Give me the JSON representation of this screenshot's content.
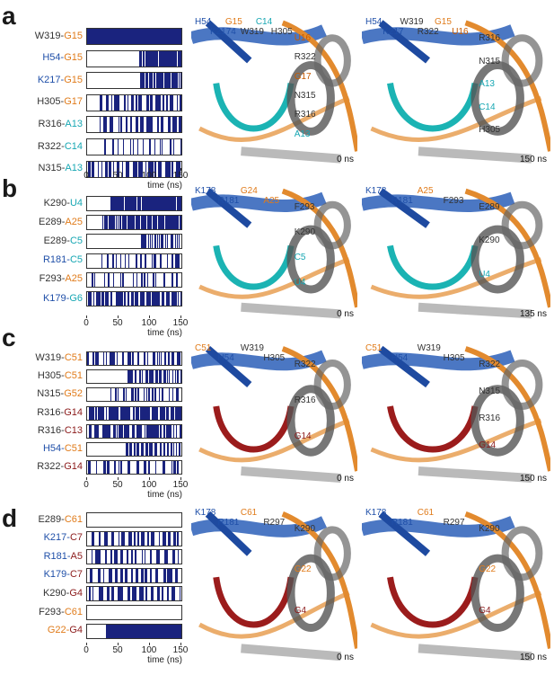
{
  "colors": {
    "blue": "#1f4fa8",
    "orange": "#e07b1a",
    "teal": "#17a7b3",
    "dark": "#333333",
    "red": "#8b1a1a",
    "bar": "#1a237e"
  },
  "panels": [
    {
      "letter": "a",
      "rows": [
        {
          "a": "W319",
          "ac": "dark",
          "b": "G15",
          "bc": "orange"
        },
        {
          "a": "H54",
          "ac": "blue",
          "b": "G15",
          "bc": "orange"
        },
        {
          "a": "K217",
          "ac": "blue",
          "b": "G15",
          "bc": "orange"
        },
        {
          "a": "H305",
          "ac": "dark",
          "b": "G17",
          "bc": "orange"
        },
        {
          "a": "R316",
          "ac": "dark",
          "b": "A13",
          "bc": "teal"
        },
        {
          "a": "R322",
          "ac": "dark",
          "b": "C14",
          "bc": "teal"
        },
        {
          "a": "N315",
          "ac": "dark",
          "b": "A13",
          "bc": "teal"
        }
      ],
      "left_time": "0 ns",
      "right_time": "150 ns",
      "left_labels": [
        "H54",
        "K2174",
        "G15",
        "W319",
        "C14",
        "H305",
        "U16",
        "R322",
        "G17",
        "N315",
        "R316",
        "A13"
      ],
      "right_labels": [
        "H54",
        "K217",
        "W319",
        "R322",
        "G15",
        "U16",
        "R316",
        "N315",
        "A13",
        "C14",
        "H305"
      ]
    },
    {
      "letter": "b",
      "rows": [
        {
          "a": "K290",
          "ac": "dark",
          "b": "U4",
          "bc": "teal"
        },
        {
          "a": "E289",
          "ac": "dark",
          "b": "A25",
          "bc": "orange"
        },
        {
          "a": "E289",
          "ac": "dark",
          "b": "C5",
          "bc": "teal"
        },
        {
          "a": "R181",
          "ac": "blue",
          "b": "C5",
          "bc": "teal"
        },
        {
          "a": "F293",
          "ac": "dark",
          "b": "A25",
          "bc": "orange"
        },
        {
          "a": "K179",
          "ac": "blue",
          "b": "G6",
          "bc": "teal"
        }
      ],
      "left_time": "0 ns",
      "right_time": "135 ns",
      "left_labels": [
        "K178",
        "R181",
        "G24",
        "A25",
        "F293",
        "K290",
        "C5",
        "U4"
      ],
      "right_labels": [
        "K178",
        "R181",
        "A25",
        "F293",
        "E289",
        "K290",
        "U4"
      ]
    },
    {
      "letter": "c",
      "rows": [
        {
          "a": "W319",
          "ac": "dark",
          "b": "C51",
          "bc": "orange"
        },
        {
          "a": "H305",
          "ac": "dark",
          "b": "C51",
          "bc": "orange"
        },
        {
          "a": "N315",
          "ac": "dark",
          "b": "G52",
          "bc": "orange"
        },
        {
          "a": "R316",
          "ac": "dark",
          "b": "G14",
          "bc": "red"
        },
        {
          "a": "R316",
          "ac": "dark",
          "b": "C13",
          "bc": "red"
        },
        {
          "a": "H54",
          "ac": "blue",
          "b": "C51",
          "bc": "orange"
        },
        {
          "a": "R322",
          "ac": "dark",
          "b": "G14",
          "bc": "red"
        }
      ],
      "left_time": "0 ns",
      "right_time": "150 ns",
      "left_labels": [
        "C51",
        "H54",
        "W319",
        "H305",
        "R322",
        "R316",
        "G14"
      ],
      "right_labels": [
        "C51",
        "H54",
        "W319",
        "H305",
        "R322",
        "N315",
        "R316",
        "G14"
      ]
    },
    {
      "letter": "d",
      "rows": [
        {
          "a": "E289",
          "ac": "dark",
          "b": "C61",
          "bc": "orange"
        },
        {
          "a": "K217",
          "ac": "blue",
          "b": "C7",
          "bc": "red"
        },
        {
          "a": "R181",
          "ac": "blue",
          "b": "A5",
          "bc": "red"
        },
        {
          "a": "K179",
          "ac": "blue",
          "b": "C7",
          "bc": "red"
        },
        {
          "a": "K290",
          "ac": "dark",
          "b": "G4",
          "bc": "red"
        },
        {
          "a": "F293",
          "ac": "dark",
          "b": "C61",
          "bc": "orange"
        },
        {
          "a": "G22",
          "ac": "orange",
          "b": "G4",
          "bc": "red"
        }
      ],
      "left_time": "0 ns",
      "right_time": "150 ns",
      "left_labels": [
        "K178",
        "R181",
        "C61",
        "R297",
        "K290",
        "G22",
        "G4"
      ],
      "right_labels": [
        "K178",
        "R181",
        "C61",
        "R297",
        "K290",
        "G22",
        "G4"
      ]
    }
  ],
  "axis": {
    "ticks": [
      "0",
      "50",
      "100",
      "150"
    ],
    "xlabel": "time (ns)",
    "xlim": [
      0,
      150
    ]
  }
}
